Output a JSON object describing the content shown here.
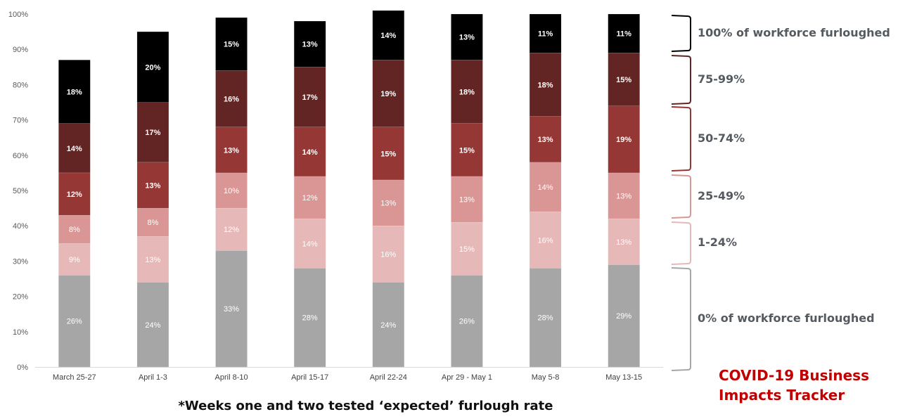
{
  "chart_data": {
    "type": "bar",
    "stacked": true,
    "title": "",
    "xlabel": "",
    "ylabel": "",
    "ylim": [
      0,
      100
    ],
    "yticks": [
      "0%",
      "10%",
      "20%",
      "30%",
      "40%",
      "50%",
      "60%",
      "70%",
      "80%",
      "90%",
      "100%"
    ],
    "grid": false,
    "legend_placement": "right",
    "categories": [
      "March 25-27",
      "April 1-3",
      "April 8-10",
      "April 15-17",
      "April 22-24",
      "Apr 29 - May 1",
      "May 5-8",
      "May 13-15"
    ],
    "series": [
      {
        "name": "0% of workforce furloughed",
        "color": "#a6a6a6",
        "label_color": "#ffffff",
        "values": [
          26,
          24,
          33,
          28,
          24,
          26,
          28,
          29
        ]
      },
      {
        "name": "1-24%",
        "color": "#e6b8b7",
        "label_color": "#ffffff",
        "values": [
          9,
          13,
          12,
          14,
          16,
          15,
          16,
          13
        ]
      },
      {
        "name": "25-49%",
        "color": "#da9694",
        "label_color": "#ffffff",
        "values": [
          8,
          8,
          10,
          12,
          13,
          13,
          14,
          13
        ]
      },
      {
        "name": "50-74%",
        "color": "#953735",
        "label_color": "#ffffff",
        "values": [
          12,
          13,
          13,
          14,
          15,
          15,
          13,
          19
        ]
      },
      {
        "name": "75-99%",
        "color": "#632523",
        "label_color": "#ffffff",
        "values": [
          14,
          17,
          16,
          17,
          19,
          18,
          18,
          15
        ]
      },
      {
        "name": "100% of workforce furloughed",
        "color": "#000000",
        "label_color": "#ffffff",
        "values": [
          18,
          20,
          15,
          13,
          14,
          13,
          11,
          11
        ]
      }
    ],
    "annotations": [
      "*Weeks one and two tested ‘expected’ furlough rate"
    ]
  },
  "legend": {
    "items": [
      {
        "label": "100% of workforce furloughed",
        "color": "#000000"
      },
      {
        "label": "75-99%",
        "color": "#632523"
      },
      {
        "label": "50-74%",
        "color": "#953735"
      },
      {
        "label": "25-49%",
        "color": "#da9694"
      },
      {
        "label": "1-24%",
        "color": "#e6b8b7"
      },
      {
        "label": "0% of workforce furloughed",
        "color": "#a6a6a6"
      }
    ]
  },
  "footnote": "*Weeks one and two tested ‘expected’ furlough rate",
  "brand": {
    "line1": "COVID-19 Business",
    "line2": "Impacts Tracker",
    "color": "#c00000"
  }
}
